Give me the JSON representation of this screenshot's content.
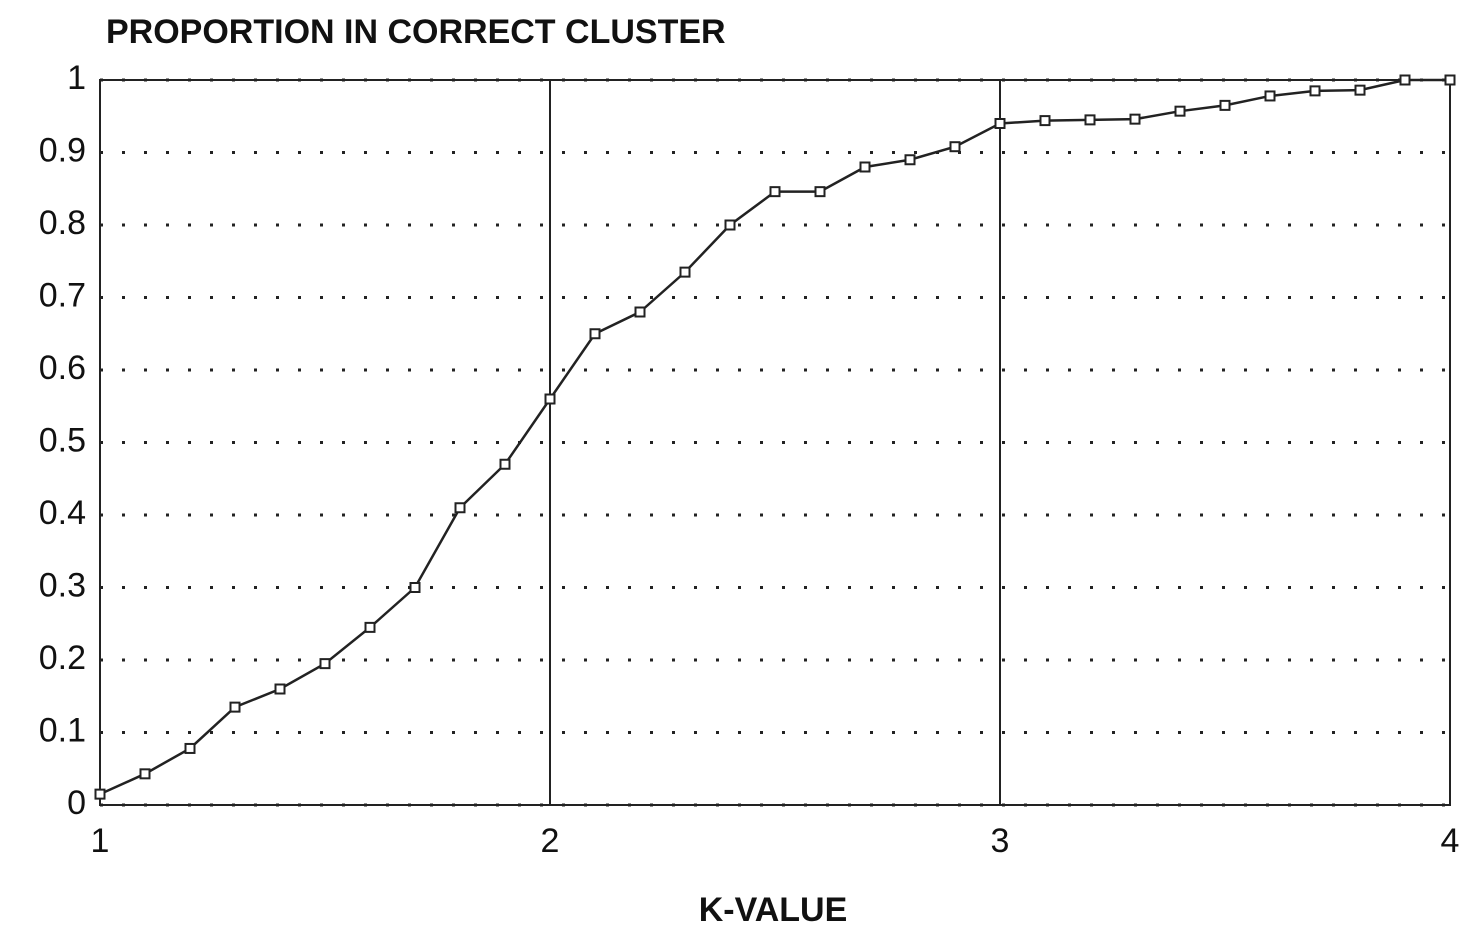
{
  "chart_data": {
    "type": "line",
    "title": "PROPORTION IN CORRECT CLUSTER",
    "x_label": "K-VALUE",
    "x": [
      1.0,
      1.1,
      1.2,
      1.3,
      1.4,
      1.5,
      1.6,
      1.7,
      1.8,
      1.9,
      2.0,
      2.1,
      2.2,
      2.3,
      2.4,
      2.5,
      2.6,
      2.7,
      2.8,
      2.9,
      3.0,
      3.1,
      3.2,
      3.3,
      3.4,
      3.5,
      3.6,
      3.7,
      3.8,
      3.9,
      4.0
    ],
    "series": [
      {
        "color": "#222222",
        "values": [
          0.015,
          0.043,
          0.078,
          0.135,
          0.16,
          0.195,
          0.245,
          0.3,
          0.41,
          0.47,
          0.56,
          0.65,
          0.68,
          0.735,
          0.8,
          0.846,
          0.846,
          0.88,
          0.89,
          0.908,
          0.94,
          0.944,
          0.945,
          0.946,
          0.957,
          0.965,
          0.978,
          0.985,
          0.986,
          1.0,
          1.0
        ]
      }
    ],
    "xlim": [
      1,
      4
    ],
    "xticks": [
      1,
      2,
      3,
      4
    ],
    "ylim": [
      0,
      1
    ],
    "yticks": [
      0,
      0.1,
      0.2,
      0.3,
      0.4,
      0.5,
      0.6,
      0.7,
      0.8,
      0.9,
      1
    ],
    "grid": true
  }
}
